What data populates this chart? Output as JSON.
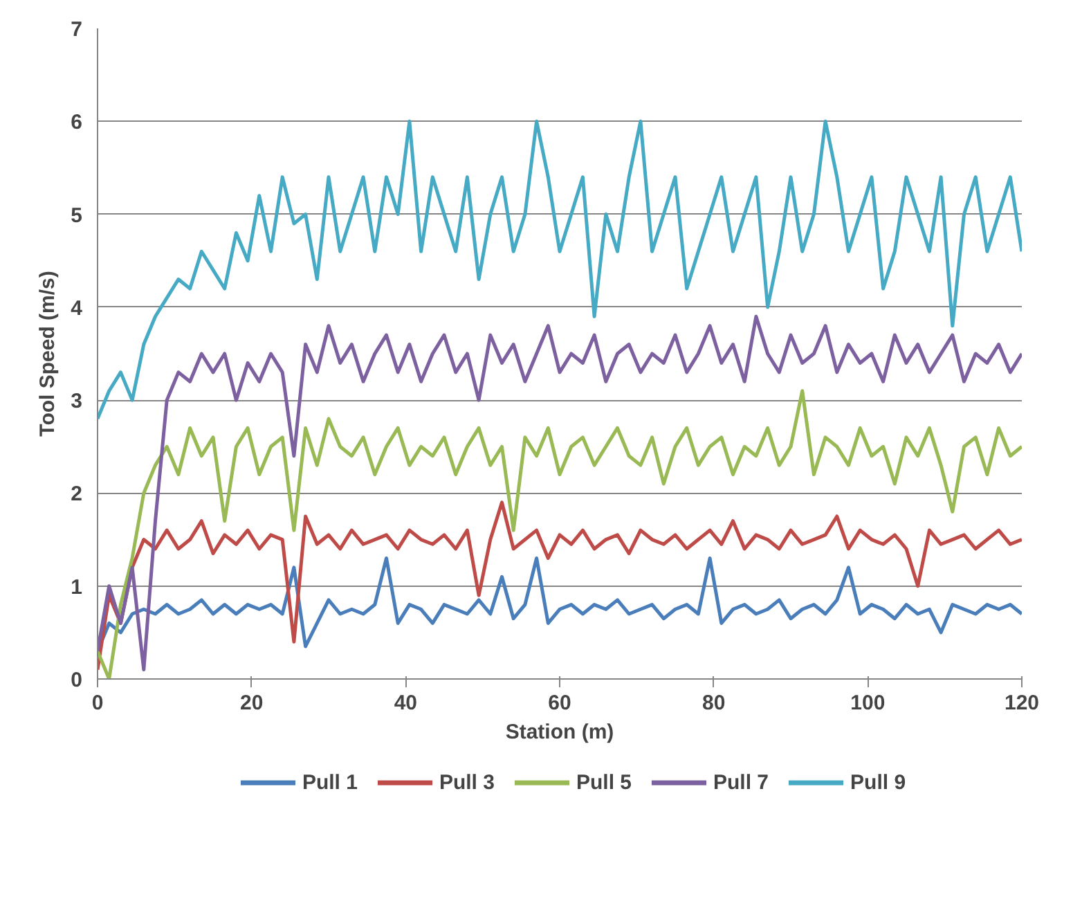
{
  "chart_data": {
    "type": "line",
    "xlabel": "Station (m)",
    "ylabel": "Tool Speed (m/s)",
    "xlim": [
      0,
      120
    ],
    "xticks": [
      0,
      20,
      40,
      60,
      80,
      100,
      120
    ],
    "ylim": [
      0,
      7
    ],
    "yticks": [
      0,
      1,
      2,
      3,
      4,
      5,
      6,
      7
    ],
    "grid": "y",
    "legend": "bottom",
    "marker": "none",
    "line_style": "solid",
    "x": [
      0,
      1.5,
      3,
      4.5,
      6,
      7.5,
      9,
      10.5,
      12,
      13.5,
      15,
      16.5,
      18,
      19.5,
      21,
      22.5,
      24,
      25.5,
      27,
      28.5,
      30,
      31.5,
      33,
      34.5,
      36,
      37.5,
      39,
      40.5,
      42,
      43.5,
      45,
      46.5,
      48,
      49.5,
      51,
      52.5,
      54,
      55.5,
      57,
      58.5,
      60,
      61.5,
      63,
      64.5,
      66,
      67.5,
      69,
      70.5,
      72,
      73.5,
      75,
      76.5,
      78,
      79.5,
      81,
      82.5,
      84,
      85.5,
      87,
      88.5,
      90,
      91.5,
      93,
      94.5,
      96,
      97.5,
      99,
      100.5,
      102,
      103.5,
      105,
      106.5,
      108,
      109.5,
      111,
      112.5,
      114,
      115.5,
      117,
      118.5,
      120
    ],
    "series": [
      {
        "name": "Pull 1",
        "color": "#4a7ebb",
        "values": [
          0.3,
          0.6,
          0.5,
          0.7,
          0.75,
          0.7,
          0.8,
          0.7,
          0.75,
          0.85,
          0.7,
          0.8,
          0.7,
          0.8,
          0.75,
          0.8,
          0.7,
          1.2,
          0.35,
          0.6,
          0.85,
          0.7,
          0.75,
          0.7,
          0.8,
          1.3,
          0.6,
          0.8,
          0.75,
          0.6,
          0.8,
          0.75,
          0.7,
          0.85,
          0.7,
          1.1,
          0.65,
          0.8,
          1.3,
          0.6,
          0.75,
          0.8,
          0.7,
          0.8,
          0.75,
          0.85,
          0.7,
          0.75,
          0.8,
          0.65,
          0.75,
          0.8,
          0.7,
          1.3,
          0.6,
          0.75,
          0.8,
          0.7,
          0.75,
          0.85,
          0.65,
          0.75,
          0.8,
          0.7,
          0.85,
          1.2,
          0.7,
          0.8,
          0.75,
          0.65,
          0.8,
          0.7,
          0.75,
          0.5,
          0.8,
          0.75,
          0.7,
          0.8,
          0.75,
          0.8,
          0.7
        ]
      },
      {
        "name": "Pull 3",
        "color": "#be4b48",
        "values": [
          0.1,
          0.9,
          0.6,
          1.2,
          1.5,
          1.4,
          1.6,
          1.4,
          1.5,
          1.7,
          1.35,
          1.55,
          1.45,
          1.6,
          1.4,
          1.55,
          1.5,
          0.4,
          1.75,
          1.45,
          1.55,
          1.4,
          1.6,
          1.45,
          1.5,
          1.55,
          1.4,
          1.6,
          1.5,
          1.45,
          1.55,
          1.4,
          1.6,
          0.9,
          1.5,
          1.9,
          1.4,
          1.5,
          1.6,
          1.3,
          1.55,
          1.45,
          1.6,
          1.4,
          1.5,
          1.55,
          1.35,
          1.6,
          1.5,
          1.45,
          1.55,
          1.4,
          1.5,
          1.6,
          1.45,
          1.7,
          1.4,
          1.55,
          1.5,
          1.4,
          1.6,
          1.45,
          1.5,
          1.55,
          1.75,
          1.4,
          1.6,
          1.5,
          1.45,
          1.55,
          1.4,
          1.0,
          1.6,
          1.45,
          1.5,
          1.55,
          1.4,
          1.5,
          1.6,
          1.45,
          1.5
        ]
      },
      {
        "name": "Pull 5",
        "color": "#98b954",
        "values": [
          0.3,
          0.0,
          0.8,
          1.3,
          2.0,
          2.3,
          2.5,
          2.2,
          2.7,
          2.4,
          2.6,
          1.7,
          2.5,
          2.7,
          2.2,
          2.5,
          2.6,
          1.6,
          2.7,
          2.3,
          2.8,
          2.5,
          2.4,
          2.6,
          2.2,
          2.5,
          2.7,
          2.3,
          2.5,
          2.4,
          2.6,
          2.2,
          2.5,
          2.7,
          2.3,
          2.5,
          1.6,
          2.6,
          2.4,
          2.7,
          2.2,
          2.5,
          2.6,
          2.3,
          2.5,
          2.7,
          2.4,
          2.3,
          2.6,
          2.1,
          2.5,
          2.7,
          2.3,
          2.5,
          2.6,
          2.2,
          2.5,
          2.4,
          2.7,
          2.3,
          2.5,
          3.1,
          2.2,
          2.6,
          2.5,
          2.3,
          2.7,
          2.4,
          2.5,
          2.1,
          2.6,
          2.4,
          2.7,
          2.3,
          1.8,
          2.5,
          2.6,
          2.2,
          2.7,
          2.4,
          2.5
        ]
      },
      {
        "name": "Pull 7",
        "color": "#7d60a0",
        "values": [
          0.3,
          1.0,
          0.6,
          1.2,
          0.1,
          1.7,
          3.0,
          3.3,
          3.2,
          3.5,
          3.3,
          3.5,
          3.0,
          3.4,
          3.2,
          3.5,
          3.3,
          2.4,
          3.6,
          3.3,
          3.8,
          3.4,
          3.6,
          3.2,
          3.5,
          3.7,
          3.3,
          3.6,
          3.2,
          3.5,
          3.7,
          3.3,
          3.5,
          3.0,
          3.7,
          3.4,
          3.6,
          3.2,
          3.5,
          3.8,
          3.3,
          3.5,
          3.4,
          3.7,
          3.2,
          3.5,
          3.6,
          3.3,
          3.5,
          3.4,
          3.7,
          3.3,
          3.5,
          3.8,
          3.4,
          3.6,
          3.2,
          3.9,
          3.5,
          3.3,
          3.7,
          3.4,
          3.5,
          3.8,
          3.3,
          3.6,
          3.4,
          3.5,
          3.2,
          3.7,
          3.4,
          3.6,
          3.3,
          3.5,
          3.7,
          3.2,
          3.5,
          3.4,
          3.6,
          3.3,
          3.5
        ]
      },
      {
        "name": "Pull 9",
        "color": "#46aac5",
        "values": [
          2.8,
          3.1,
          3.3,
          3.0,
          3.6,
          3.9,
          4.1,
          4.3,
          4.2,
          4.6,
          4.4,
          4.2,
          4.8,
          4.5,
          5.2,
          4.6,
          5.4,
          4.9,
          5.0,
          4.3,
          5.4,
          4.6,
          5.0,
          5.4,
          4.6,
          5.4,
          5.0,
          6.0,
          4.6,
          5.4,
          5.0,
          4.6,
          5.4,
          4.3,
          5.0,
          5.4,
          4.6,
          5.0,
          6.0,
          5.4,
          4.6,
          5.0,
          5.4,
          3.9,
          5.0,
          4.6,
          5.4,
          6.0,
          4.6,
          5.0,
          5.4,
          4.2,
          4.6,
          5.0,
          5.4,
          4.6,
          5.0,
          5.4,
          4.0,
          4.6,
          5.4,
          4.6,
          5.0,
          6.0,
          5.4,
          4.6,
          5.0,
          5.4,
          4.2,
          4.6,
          5.4,
          5.0,
          4.6,
          5.4,
          3.8,
          5.0,
          5.4,
          4.6,
          5.0,
          5.4,
          4.6
        ]
      }
    ]
  }
}
